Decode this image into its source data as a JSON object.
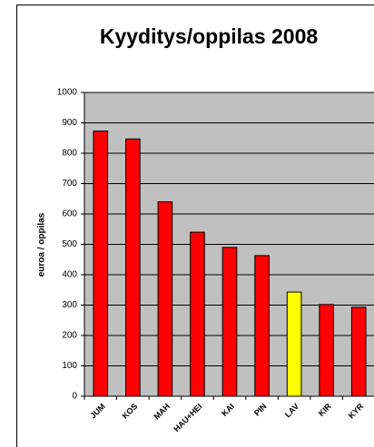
{
  "chart_data": {
    "type": "bar",
    "title": "Kyyditys/oppilas 2008",
    "y_label": "euroa / oppilas",
    "categories": [
      "JUM",
      "KOS",
      "MAH",
      "HAU+HEI",
      "KAI",
      "PIN",
      "LAV",
      "KIR",
      "KYR"
    ],
    "values": [
      873,
      847,
      640,
      540,
      490,
      463,
      343,
      302,
      293
    ],
    "colors": [
      "#ff0000",
      "#ff0000",
      "#ff0000",
      "#ff0000",
      "#ff0000",
      "#ff0000",
      "#ffff00",
      "#ff0000",
      "#ff0000"
    ],
    "plot_background": "#c0c0c0",
    "ylim": [
      0,
      1000
    ],
    "yticks": [
      0,
      100,
      200,
      300,
      400,
      500,
      600,
      700,
      800,
      900,
      1000
    ],
    "grid": true
  }
}
